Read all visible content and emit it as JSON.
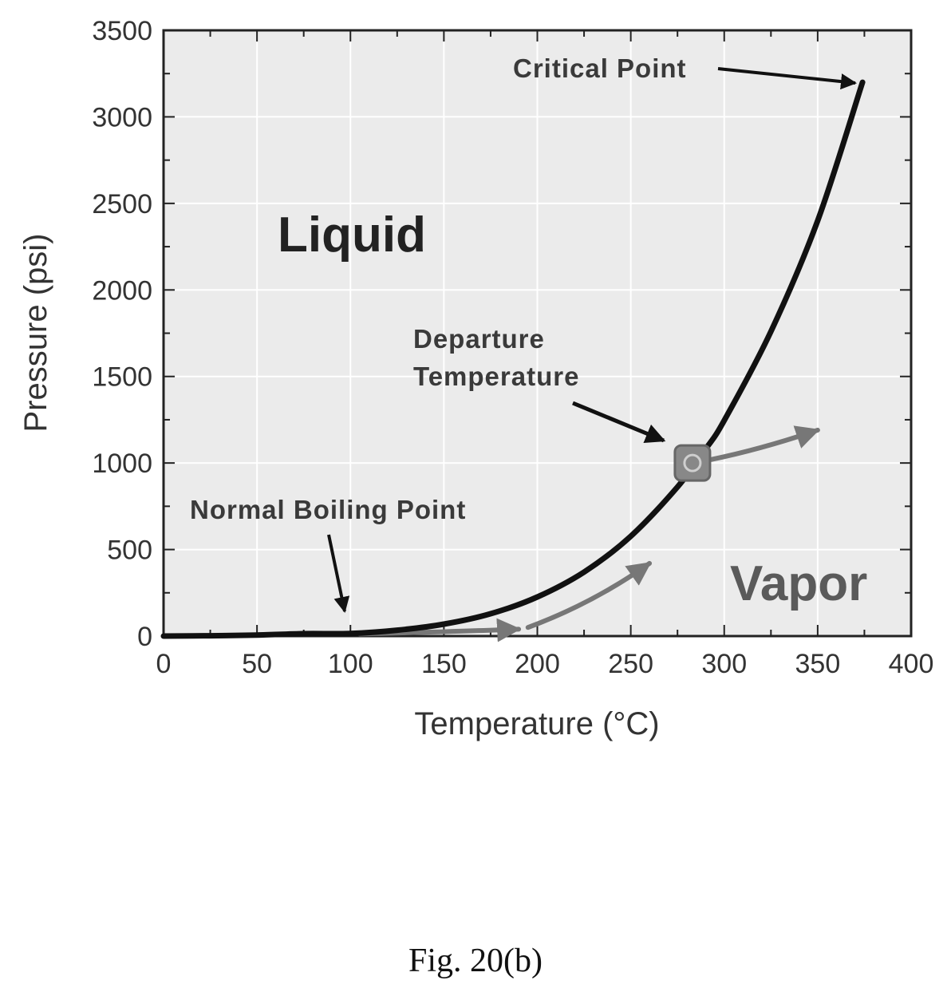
{
  "chart_data": {
    "type": "line",
    "xlabel": "Temperature (°C)",
    "ylabel": "Pressure (psi)",
    "xlim": [
      0,
      400
    ],
    "ylim": [
      0,
      3500
    ],
    "x_ticks": [
      0,
      50,
      100,
      150,
      200,
      250,
      300,
      350,
      400
    ],
    "y_ticks": [
      0,
      500,
      1000,
      1500,
      2000,
      2500,
      3000,
      3500
    ],
    "grid": true,
    "series": [
      {
        "x": [
          0,
          25,
          50,
          75,
          100,
          125,
          150,
          175,
          200,
          225,
          250,
          275,
          290,
          300,
          325,
          350,
          374
        ],
        "y": [
          0,
          2,
          6,
          14,
          15,
          34,
          69,
          129,
          226,
          370,
          577,
          862,
          1080,
          1246,
          1760,
          2400,
          3200
        ]
      }
    ],
    "regions": {
      "liquid": "Liquid",
      "vapor": "Vapor"
    },
    "annotations": {
      "critical_point": "Critical Point",
      "departure_line1": "Departure",
      "departure_line2": "Temperature",
      "normal_boiling": "Normal Boiling Point"
    },
    "markers": {
      "critical_point": {
        "x": 374,
        "y": 3200
      },
      "departure": {
        "x": 283,
        "y": 1000
      },
      "normal_boiling": {
        "x": 100,
        "y": 15
      }
    },
    "colors": {
      "curve": "#111111",
      "flow_arrows": "#777777"
    }
  },
  "caption": "Fig.  20(b)"
}
